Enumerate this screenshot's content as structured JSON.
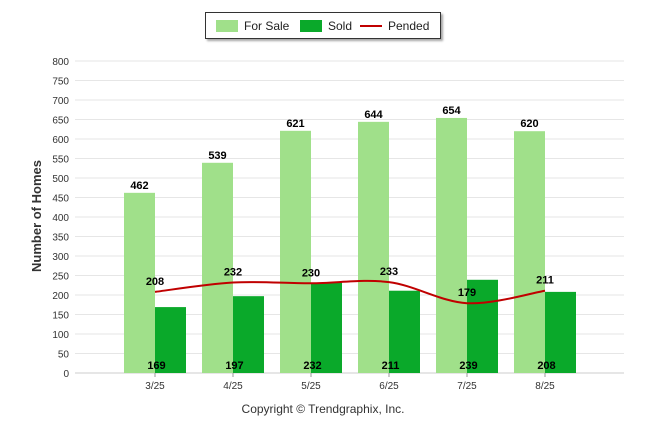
{
  "chart_data": {
    "type": "bar",
    "categories": [
      "3/25",
      "4/25",
      "5/25",
      "6/25",
      "7/25",
      "8/25"
    ],
    "series": [
      {
        "name": "For Sale",
        "type": "bar",
        "color": "#a0e08a",
        "values": [
          462,
          539,
          621,
          644,
          654,
          620
        ]
      },
      {
        "name": "Sold",
        "type": "bar",
        "color": "#0aa92a",
        "values": [
          169,
          197,
          232,
          211,
          239,
          208
        ]
      },
      {
        "name": "Pended",
        "type": "line",
        "color": "#c00000",
        "values": [
          208,
          232,
          230,
          233,
          179,
          211
        ]
      }
    ],
    "ylabel": "Number of Homes",
    "xlabel": "",
    "ylim": [
      0,
      800
    ],
    "yticks": [
      0,
      50,
      100,
      150,
      200,
      250,
      300,
      350,
      400,
      450,
      500,
      550,
      600,
      650,
      700,
      750,
      800
    ],
    "grid": true,
    "legend": "top-center"
  },
  "footer": {
    "copyright": "Copyright © Trendgraphix, Inc."
  }
}
